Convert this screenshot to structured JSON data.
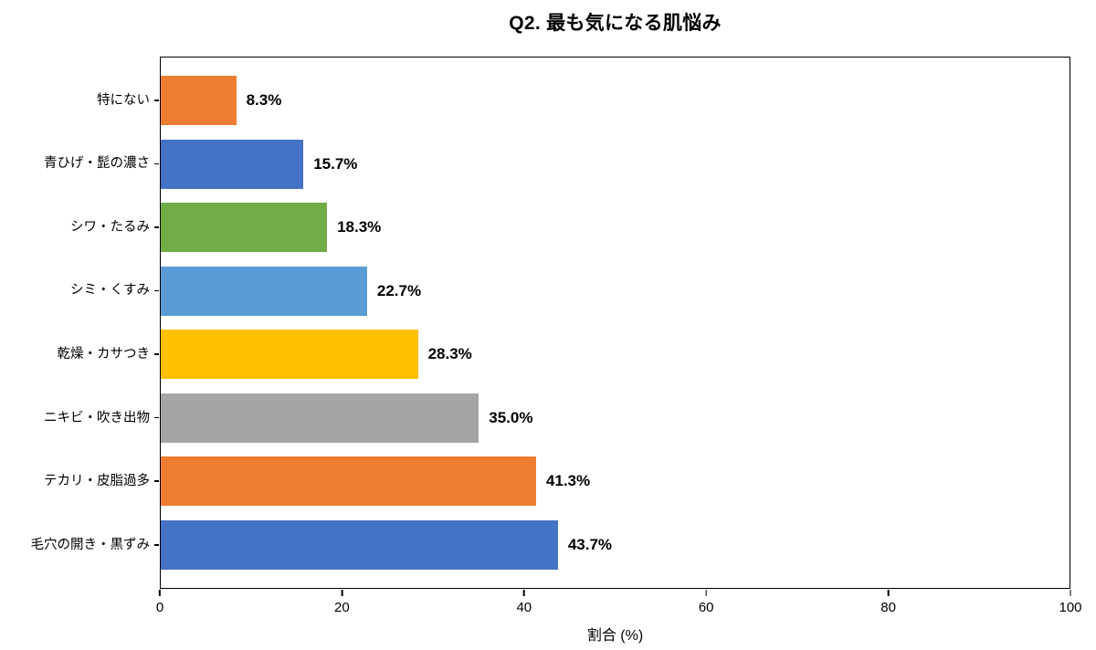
{
  "chart": {
    "title": "Q2. 最も気になる肌悩み",
    "xlabel": "割合 (%)"
  },
  "chart_data": {
    "type": "bar",
    "orientation": "horizontal",
    "title": "Q2. 最も気になる肌悩み",
    "xlabel": "割合 (%)",
    "ylabel": "",
    "xlim": [
      0,
      100
    ],
    "xticks": [
      0,
      20,
      40,
      60,
      80,
      100
    ],
    "grid": false,
    "legend": false,
    "categories_top_to_bottom": [
      "特にない",
      "青ひげ・髭の濃さ",
      "シワ・たるみ",
      "シミ・くすみ",
      "乾燥・カサつき",
      "ニキビ・吹き出物",
      "テカリ・皮脂過多",
      "毛穴の開き・黒ずみ"
    ],
    "values": [
      8.3,
      15.7,
      18.3,
      22.7,
      28.3,
      35.0,
      41.3,
      43.7
    ],
    "value_labels": [
      "8.3%",
      "15.7%",
      "18.3%",
      "22.7%",
      "28.3%",
      "35.0%",
      "41.3%",
      "43.7%"
    ],
    "bar_colors": [
      "#ED7D31",
      "#4472C4",
      "#70AD47",
      "#5B9BD5",
      "#FFC000",
      "#A5A5A5",
      "#ED7D31",
      "#4472C4"
    ]
  }
}
